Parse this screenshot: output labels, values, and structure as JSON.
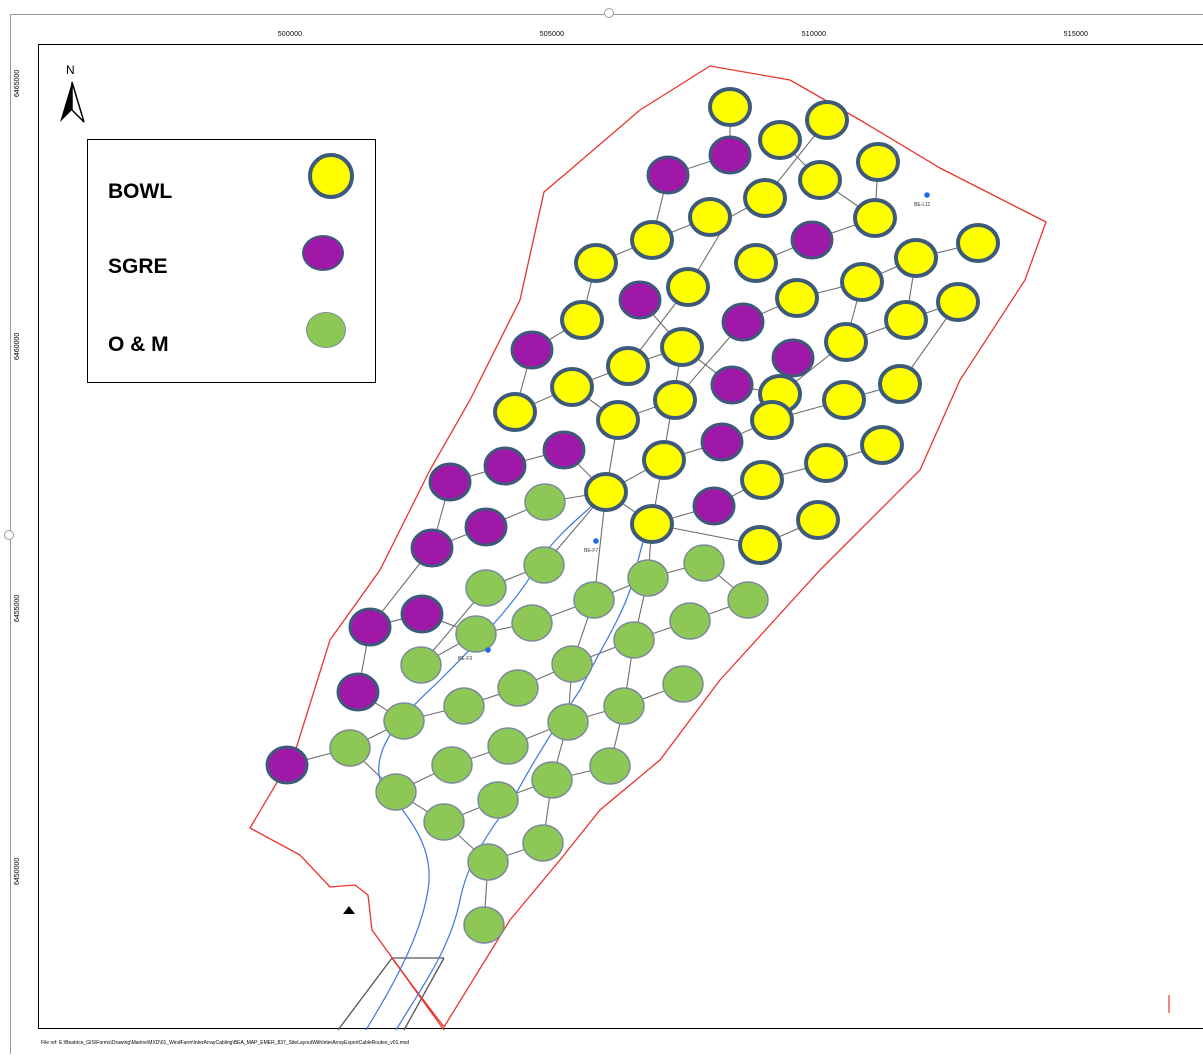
{
  "map": {
    "x_ticks": [
      "500000",
      "505000",
      "510000",
      "515000"
    ],
    "y_ticks": [
      "6465000",
      "6460000",
      "6455000",
      "6450000"
    ],
    "north_label": "N",
    "footer_text": "File ref: E:\\Beatrice_GIS\\Forms\\Drawing\\Marine\\MXD\\01_WindFarm\\InterArrayCabling\\BEA_MAP_EMER_837_SiteLayoutWithInterArrayExportCableRoutes_v01.mxd",
    "substation_labels": [
      "BE-L11",
      "BE-F7",
      "BE-F3"
    ]
  },
  "legend": {
    "items": [
      {
        "label": "BOWL",
        "fill": "#ffff00",
        "stroke": "#3d5a7a"
      },
      {
        "label": "SGRE",
        "fill": "#a018a8",
        "stroke": "#3d5a7a"
      },
      {
        "label": "O & M",
        "fill": "#8dc857",
        "stroke": "#7a8a9a"
      }
    ]
  },
  "colors": {
    "boundary": "#e8332e",
    "cable": "#6e6e6e",
    "export_cable": "#3a78e0",
    "substation": "#1e6ee0"
  }
}
